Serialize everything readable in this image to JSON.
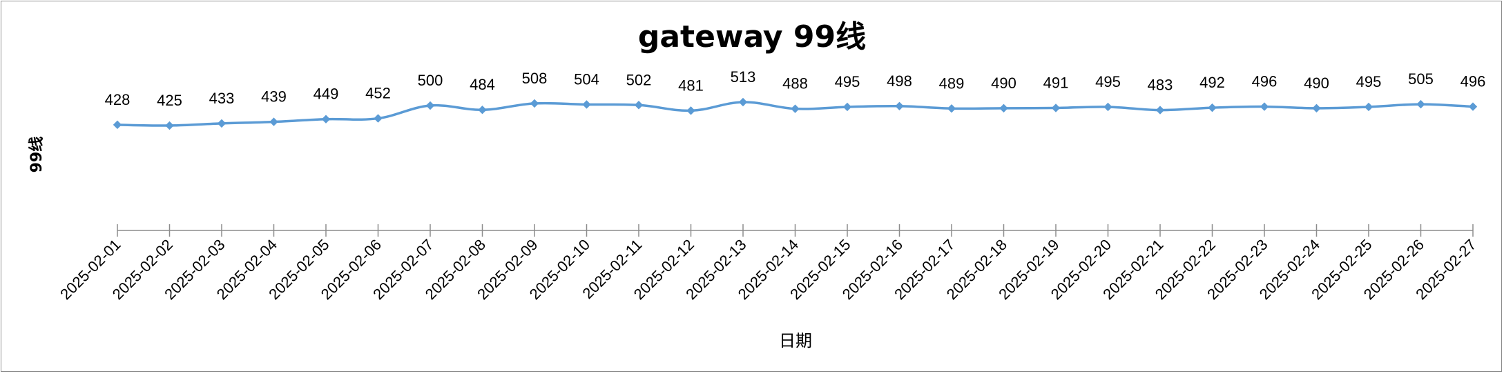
{
  "chart_data": {
    "type": "line",
    "title": "gateway 99线",
    "xlabel": "日期",
    "ylabel": "99线",
    "categories": [
      "2025-02-01",
      "2025-02-02",
      "2025-02-03",
      "2025-02-04",
      "2025-02-05",
      "2025-02-06",
      "2025-02-07",
      "2025-02-08",
      "2025-02-09",
      "2025-02-10",
      "2025-02-11",
      "2025-02-12",
      "2025-02-13",
      "2025-02-14",
      "2025-02-15",
      "2025-02-16",
      "2025-02-17",
      "2025-02-18",
      "2025-02-19",
      "2025-02-20",
      "2025-02-21",
      "2025-02-22",
      "2025-02-23",
      "2025-02-24",
      "2025-02-25",
      "2025-02-26",
      "2025-02-27"
    ],
    "values": [
      428,
      425,
      433,
      439,
      449,
      452,
      500,
      484,
      508,
      504,
      502,
      481,
      513,
      488,
      495,
      498,
      489,
      490,
      491,
      495,
      483,
      492,
      496,
      490,
      495,
      505,
      496
    ],
    "grid": false,
    "legend": "none",
    "line_color": "#5b9bd5"
  }
}
